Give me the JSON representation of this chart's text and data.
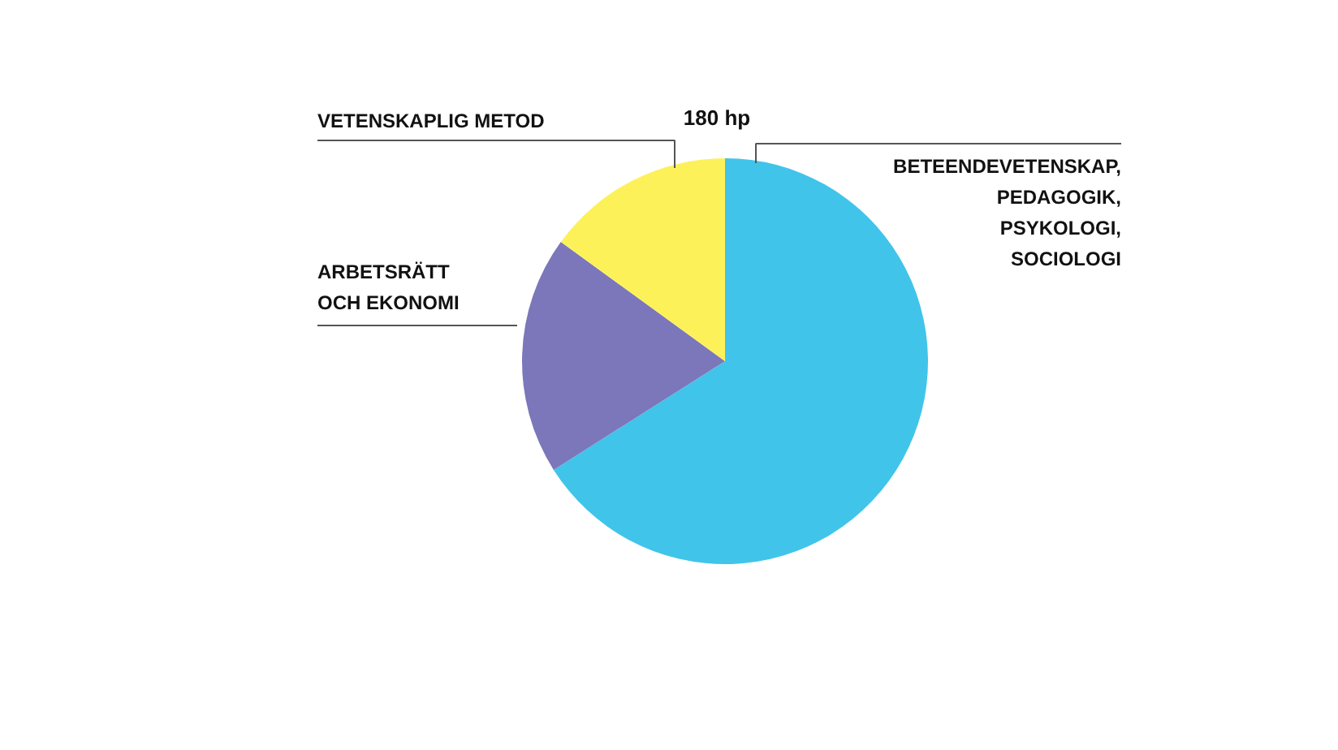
{
  "chart_data": {
    "type": "pie",
    "title": "180 hp",
    "categories": [
      "BETEENDEVETENSKAP,\nPEDAGOGIK,\nPSYKOLOGI,\nSOCIOLOGI",
      "ARBETSRÄTT\nOCH EKONOMI",
      "VETENSKAPLIG METOD"
    ],
    "values": [
      66,
      19,
      15
    ],
    "colors": [
      "#41c4ea",
      "#7b77ba",
      "#fdf15a"
    ]
  }
}
